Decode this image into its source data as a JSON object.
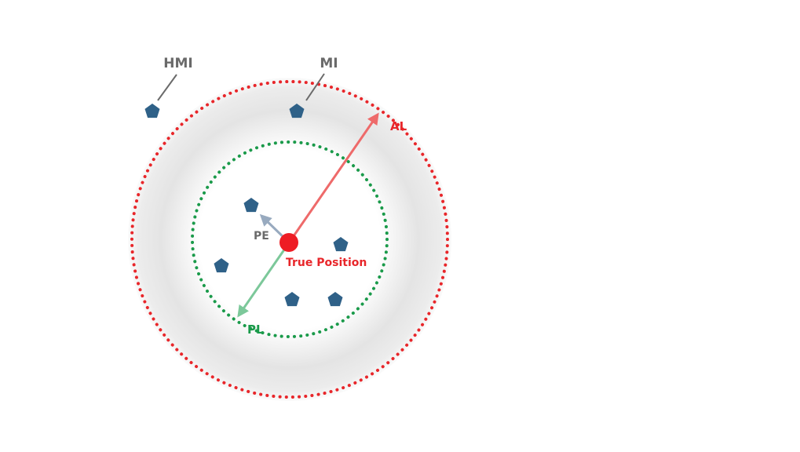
{
  "labels": {
    "hmi": "HMI",
    "mi": "MI",
    "al": "AL",
    "pe": "PE",
    "pl": "PL",
    "true_position": "True Position"
  },
  "colors": {
    "alert_ring": "#e8262a",
    "protection_ring": "#1a9a4a",
    "al_arrow": "#ee6a6a",
    "pl_arrow": "#7cc89a",
    "pe_arrow": "#98aabf",
    "estimate_marker": "#2f6188",
    "true_position": "#ee1c24",
    "label_gray": "#6a6a6a",
    "label_red": "#e8262a",
    "label_green": "#1a9a4a",
    "halo": "#e2e2e2"
  },
  "icons": {
    "estimate_marker": "pentagon"
  }
}
